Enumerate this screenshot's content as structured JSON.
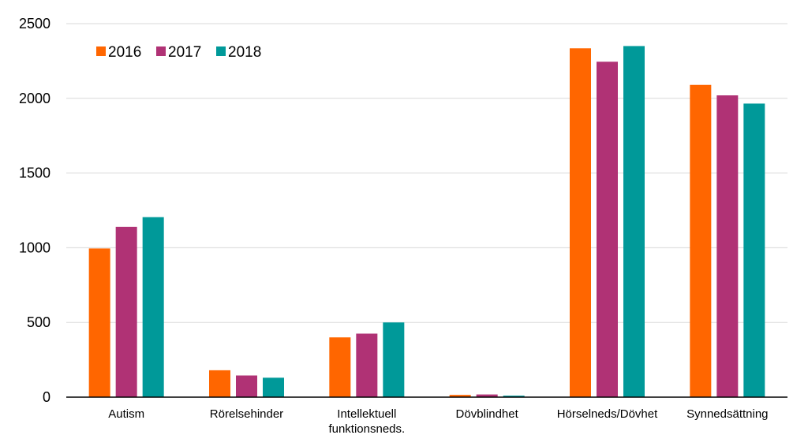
{
  "chart_data": {
    "type": "bar",
    "title": "",
    "xlabel": "",
    "ylabel": "",
    "categories": [
      [
        "Autism"
      ],
      [
        "Rörelsehinder"
      ],
      [
        "Intellektuell",
        "funktionsneds."
      ],
      [
        "Dövblindhet"
      ],
      [
        "Hörselneds/Dövhet"
      ],
      [
        "Synnedsättning"
      ]
    ],
    "series": [
      {
        "name": "2016",
        "color": "#FF6600",
        "values": [
          995,
          180,
          400,
          15,
          2335,
          2090
        ]
      },
      {
        "name": "2017",
        "color": "#B03275",
        "values": [
          1140,
          145,
          425,
          18,
          2245,
          2020
        ]
      },
      {
        "name": "2018",
        "color": "#009999",
        "values": [
          1205,
          130,
          500,
          10,
          2350,
          1965
        ]
      }
    ],
    "ylim": [
      0,
      2500
    ],
    "yticks": [
      0,
      500,
      1000,
      1500,
      2000,
      2500
    ],
    "grid": true,
    "legend": "top-left"
  }
}
